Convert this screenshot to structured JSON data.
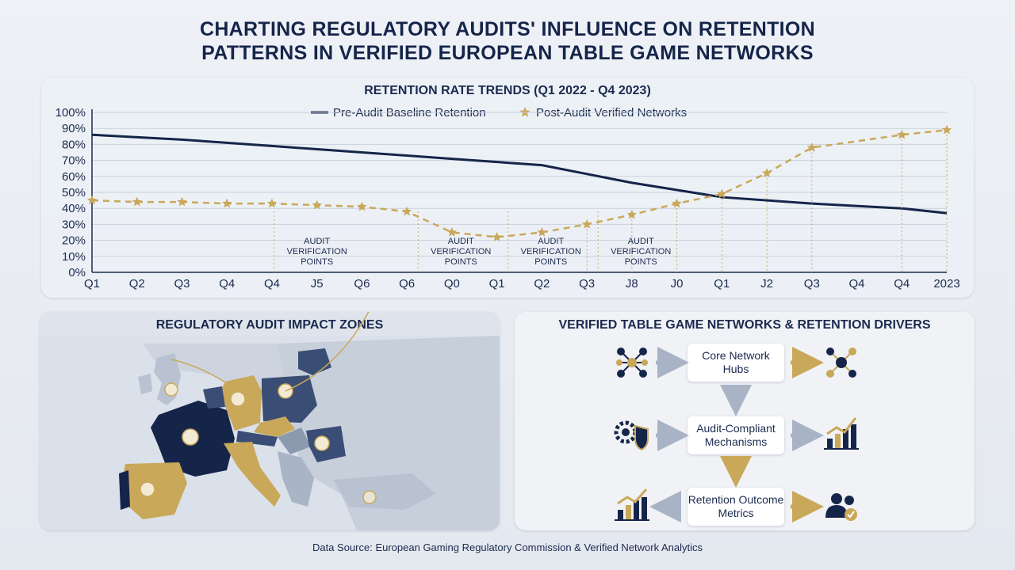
{
  "title_line1": "CHARTING REGULATORY AUDITS' INFLUENCE ON RETENTION",
  "title_line2": "PATTERNS IN VERIFIED EUROPEAN TABLE GAME NETWORKS",
  "colors": {
    "navy": "#15254a",
    "gold": "#c9a85a",
    "grid": "#c9d0dc"
  },
  "chart_data": {
    "type": "line",
    "title": "RETENTION RATE TRENDS (Q1 2022 - Q4 2023)",
    "categories": [
      "Q1",
      "Q2",
      "Q3",
      "Q4",
      "Q4",
      "J5",
      "Q6",
      "Q6",
      "Q0",
      "Q1",
      "Q2",
      "Q3",
      "J8",
      "J0",
      "Q1",
      "J2",
      "Q3",
      "Q4",
      "Q4",
      "2023"
    ],
    "ylim": [
      0,
      100
    ],
    "yticks": [
      "0%",
      "10%",
      "20%",
      "30%",
      "40%",
      "50%",
      "60%",
      "70%",
      "80%",
      "90%",
      "100%"
    ],
    "grid": true,
    "legend_placement": "top-center",
    "series": [
      {
        "name": "Pre-Audit Baseline Retention",
        "color": "#15254a",
        "style": "solid",
        "points": [
          [
            0,
            86
          ],
          [
            2,
            83
          ],
          [
            4,
            79
          ],
          [
            6,
            75
          ],
          [
            8,
            71
          ],
          [
            10,
            67
          ],
          [
            12,
            56
          ],
          [
            14,
            47
          ],
          [
            16,
            43
          ],
          [
            18,
            40
          ],
          [
            19,
            37
          ]
        ]
      },
      {
        "name": "Post-Audit Verified Networks",
        "color": "#c9a85a",
        "style": "dashed-star",
        "points": [
          [
            0,
            45
          ],
          [
            1,
            44
          ],
          [
            2,
            44
          ],
          [
            3,
            43
          ],
          [
            4,
            43
          ],
          [
            5,
            42
          ],
          [
            6,
            41
          ],
          [
            7,
            38
          ],
          [
            8,
            25
          ],
          [
            9,
            22
          ],
          [
            10,
            25
          ],
          [
            11,
            30
          ],
          [
            12,
            36
          ],
          [
            13,
            43
          ],
          [
            14,
            49
          ],
          [
            15,
            62
          ],
          [
            16,
            78
          ],
          [
            18,
            86
          ],
          [
            19,
            89
          ]
        ]
      }
    ],
    "annotations": [
      {
        "text_lines": [
          "AUDIT",
          "VERIFICATION",
          "POINTS"
        ],
        "x": 5
      },
      {
        "text_lines": [
          "AUDIT",
          "VERIFICATION",
          "POINTS"
        ],
        "x": 8.2
      },
      {
        "text_lines": [
          "AUDIT",
          "VERIFICATION",
          "POINTS"
        ],
        "x": 10.2
      },
      {
        "text_lines": [
          "AUDIT",
          "VERIFICATION",
          "POINTS"
        ],
        "x": 12.2
      }
    ]
  },
  "map": {
    "title": "REGULATORY AUDIT IMPACT ZONES"
  },
  "flow": {
    "title": "VERIFIED TABLE GAME NETWORKS & RETENTION DRIVERS",
    "box1": "Core Network Hubs",
    "box2": "Audit-Compliant Mechanisms",
    "box3": "Retention Outcome Metrics",
    "icons": [
      "network-hub-icon",
      "network-cluster-icon",
      "gear-shield-icon",
      "rising-bar-chart-icon",
      "rising-bar-chart-icon",
      "users-check-icon"
    ]
  },
  "footer": "Data Source: European Gaming Regulatory Commission & Verified Network Analytics"
}
